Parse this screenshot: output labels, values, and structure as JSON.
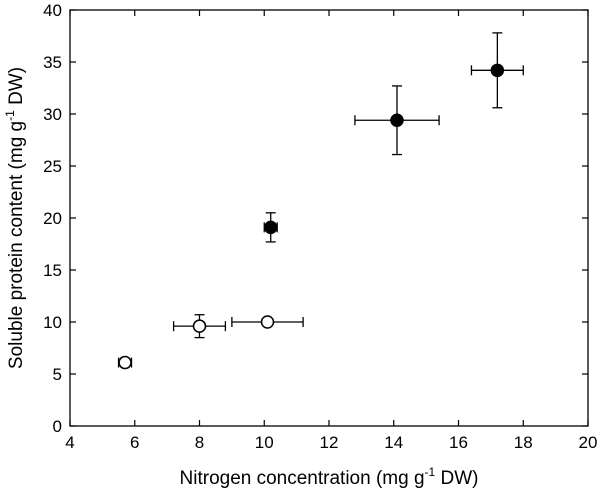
{
  "chart_data": {
    "type": "scatter",
    "xlabel": {
      "main": "Nitrogen concentration (mg g",
      "sup": "-1",
      "tail": " DW)"
    },
    "ylabel": {
      "main": "Soluble protein content (mg g",
      "sup": "-1",
      "tail": " DW)"
    },
    "xlim": [
      4,
      20
    ],
    "ylim": [
      0,
      40
    ],
    "xticks": [
      4,
      6,
      8,
      10,
      12,
      14,
      16,
      18,
      20
    ],
    "yticks": [
      0,
      5,
      10,
      15,
      20,
      25,
      30,
      35,
      40
    ],
    "grid": false,
    "series": [
      {
        "marker": "filled-circle",
        "color": "#000000",
        "points": [
          {
            "x": 10.2,
            "y": 19.1,
            "xerr": 0.2,
            "yerr": 1.4
          },
          {
            "x": 14.1,
            "y": 29.4,
            "xerr": 1.3,
            "yerr": 3.3
          },
          {
            "x": 17.2,
            "y": 34.2,
            "xerr": 0.8,
            "yerr": 3.6
          }
        ]
      },
      {
        "marker": "open-circle",
        "color": "#ffffff",
        "points": [
          {
            "x": 5.7,
            "y": 6.1,
            "xerr": 0.2,
            "yerr": 0.4
          },
          {
            "x": 8.0,
            "y": 9.6,
            "xerr": 0.8,
            "yerr": 1.1
          },
          {
            "x": 10.1,
            "y": 10.0,
            "xerr": 1.1,
            "yerr": 0.3
          }
        ]
      }
    ]
  }
}
